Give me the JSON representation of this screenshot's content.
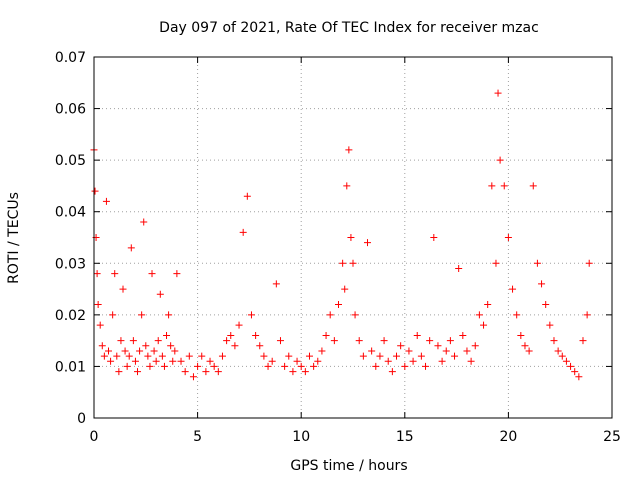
{
  "chart_data": {
    "type": "scatter",
    "title": "Day 097 of 2021, Rate Of TEC Index for receiver mzac",
    "xlabel": "GPS time / hours",
    "ylabel": "ROTI / TECUs",
    "xlim": [
      0,
      25
    ],
    "ylim": [
      0,
      0.07
    ],
    "xticks": [
      0,
      5,
      10,
      15,
      20,
      25
    ],
    "xtick_labels": [
      "0",
      "5",
      "10",
      "15",
      "20",
      "25"
    ],
    "yticks": [
      0,
      0.01,
      0.02,
      0.03,
      0.04,
      0.05,
      0.06,
      0.07
    ],
    "ytick_labels": [
      "0",
      "0.01",
      "0.02",
      "0.03",
      "0.04",
      "0.05",
      "0.06",
      "0.07"
    ],
    "grid": true,
    "marker": "+",
    "color": "#ff0000",
    "series": [
      {
        "name": "ROTI",
        "x": [
          0.0,
          0.05,
          0.1,
          0.15,
          0.2,
          0.3,
          0.4,
          0.5,
          0.6,
          0.7,
          0.8,
          0.9,
          1.0,
          1.1,
          1.2,
          1.3,
          1.4,
          1.5,
          1.6,
          1.7,
          1.8,
          1.9,
          2.0,
          2.1,
          2.2,
          2.3,
          2.4,
          2.5,
          2.6,
          2.7,
          2.8,
          2.9,
          3.0,
          3.1,
          3.2,
          3.3,
          3.4,
          3.5,
          3.6,
          3.7,
          3.8,
          3.9,
          4.0,
          4.2,
          4.4,
          4.6,
          4.8,
          5.0,
          5.2,
          5.4,
          5.6,
          5.8,
          6.0,
          6.2,
          6.4,
          6.6,
          6.8,
          7.0,
          7.2,
          7.4,
          7.6,
          7.8,
          8.0,
          8.2,
          8.4,
          8.6,
          8.8,
          9.0,
          9.2,
          9.4,
          9.6,
          9.8,
          10.0,
          10.2,
          10.4,
          10.6,
          10.8,
          11.0,
          11.2,
          11.4,
          11.6,
          11.8,
          12.0,
          12.1,
          12.2,
          12.3,
          12.4,
          12.5,
          12.6,
          12.8,
          13.0,
          13.2,
          13.4,
          13.6,
          13.8,
          14.0,
          14.2,
          14.4,
          14.6,
          14.8,
          15.0,
          15.2,
          15.4,
          15.6,
          15.8,
          16.0,
          16.2,
          16.4,
          16.6,
          16.8,
          17.0,
          17.2,
          17.4,
          17.6,
          17.8,
          18.0,
          18.2,
          18.4,
          18.6,
          18.8,
          19.0,
          19.2,
          19.4,
          19.5,
          19.6,
          19.8,
          20.0,
          20.2,
          20.4,
          20.6,
          20.8,
          21.0,
          21.2,
          21.4,
          21.6,
          21.8,
          22.0,
          22.2,
          22.4,
          22.6,
          22.8,
          23.0,
          23.2,
          23.4,
          23.6,
          23.8,
          23.9
        ],
        "y": [
          0.052,
          0.044,
          0.035,
          0.028,
          0.022,
          0.018,
          0.014,
          0.012,
          0.042,
          0.013,
          0.011,
          0.02,
          0.028,
          0.012,
          0.009,
          0.015,
          0.025,
          0.013,
          0.01,
          0.012,
          0.033,
          0.015,
          0.011,
          0.009,
          0.013,
          0.02,
          0.038,
          0.014,
          0.012,
          0.01,
          0.028,
          0.013,
          0.011,
          0.015,
          0.024,
          0.012,
          0.01,
          0.016,
          0.02,
          0.014,
          0.011,
          0.013,
          0.028,
          0.011,
          0.009,
          0.012,
          0.008,
          0.01,
          0.012,
          0.009,
          0.011,
          0.01,
          0.009,
          0.012,
          0.015,
          0.016,
          0.014,
          0.018,
          0.036,
          0.043,
          0.02,
          0.016,
          0.014,
          0.012,
          0.01,
          0.011,
          0.026,
          0.015,
          0.01,
          0.012,
          0.009,
          0.011,
          0.01,
          0.009,
          0.012,
          0.01,
          0.011,
          0.013,
          0.016,
          0.02,
          0.015,
          0.022,
          0.03,
          0.025,
          0.045,
          0.052,
          0.035,
          0.03,
          0.02,
          0.015,
          0.012,
          0.034,
          0.013,
          0.01,
          0.012,
          0.015,
          0.011,
          0.009,
          0.012,
          0.014,
          0.01,
          0.013,
          0.011,
          0.016,
          0.012,
          0.01,
          0.015,
          0.035,
          0.014,
          0.011,
          0.013,
          0.015,
          0.012,
          0.029,
          0.016,
          0.013,
          0.011,
          0.014,
          0.02,
          0.018,
          0.022,
          0.045,
          0.03,
          0.063,
          0.05,
          0.045,
          0.035,
          0.025,
          0.02,
          0.016,
          0.014,
          0.013,
          0.045,
          0.03,
          0.026,
          0.022,
          0.018,
          0.015,
          0.013,
          0.012,
          0.011,
          0.01,
          0.009,
          0.008,
          0.015,
          0.02,
          0.03
        ]
      }
    ]
  }
}
